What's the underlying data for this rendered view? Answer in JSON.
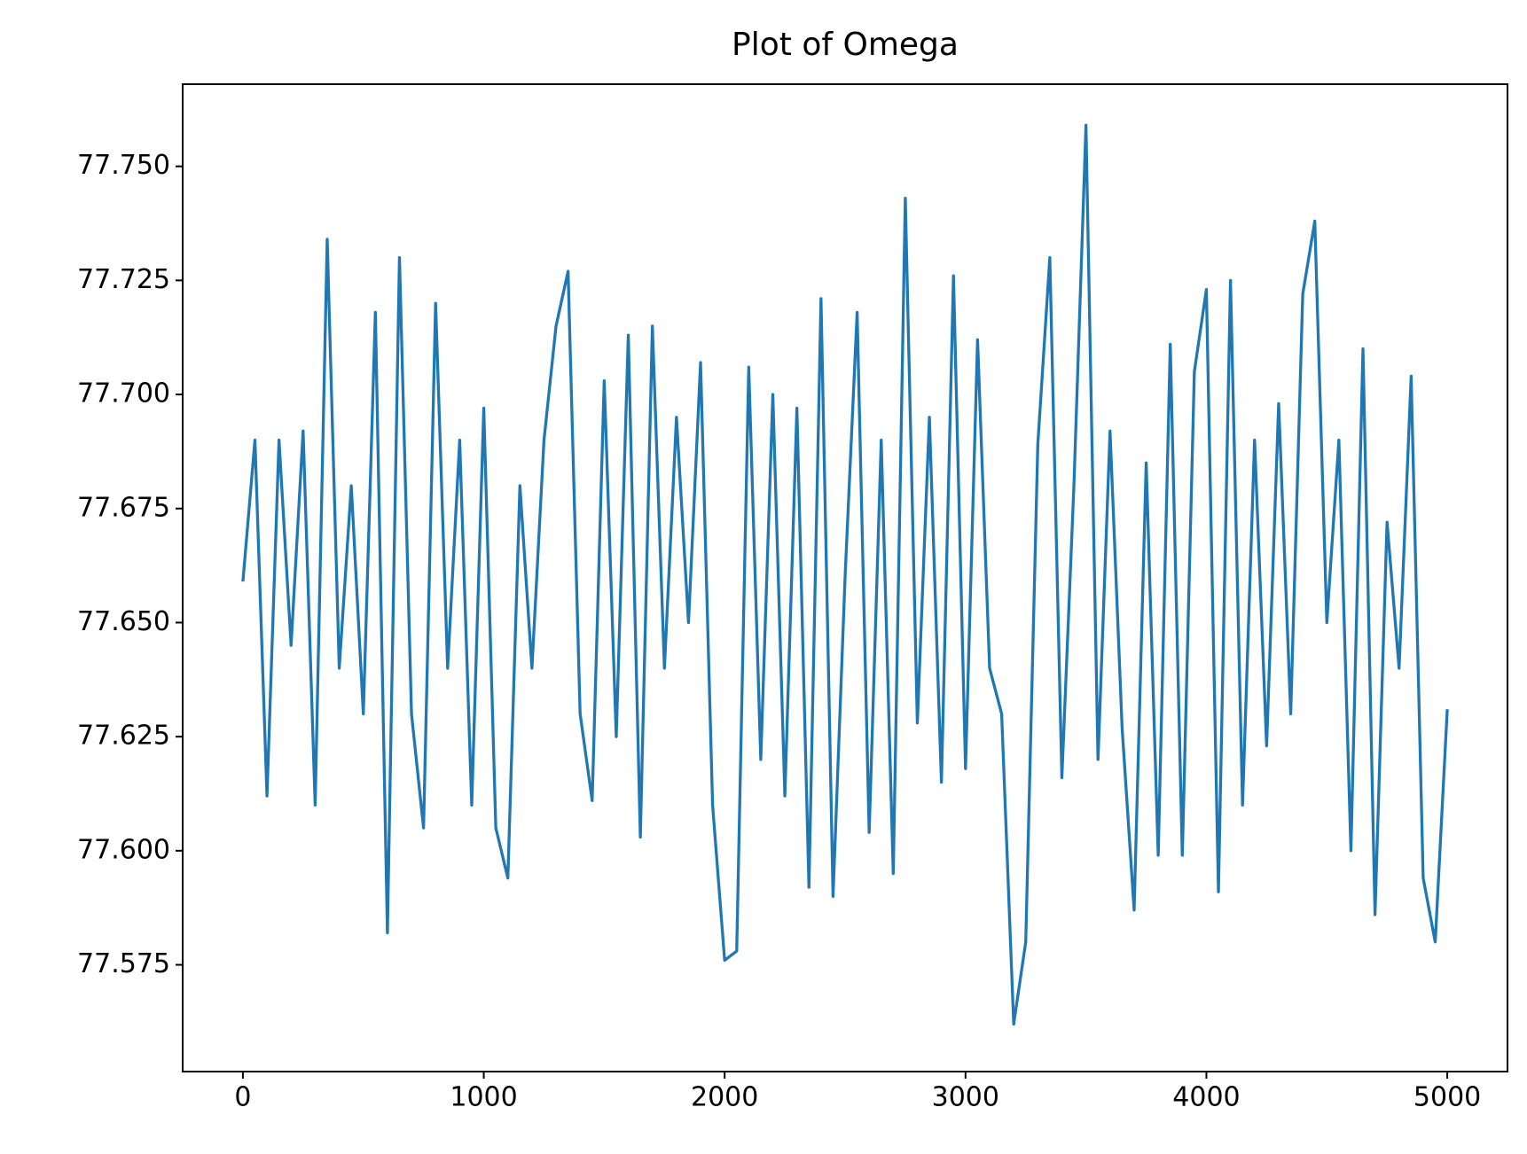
{
  "chart_data": {
    "type": "line",
    "title": "Plot of Omega",
    "x": [
      0,
      50,
      100,
      150,
      200,
      250,
      300,
      350,
      400,
      450,
      500,
      550,
      600,
      650,
      700,
      750,
      800,
      850,
      900,
      950,
      1000,
      1050,
      1100,
      1150,
      1200,
      1250,
      1300,
      1350,
      1400,
      1450,
      1500,
      1550,
      1600,
      1650,
      1700,
      1750,
      1800,
      1850,
      1900,
      1950,
      2000,
      2050,
      2100,
      2150,
      2200,
      2250,
      2300,
      2350,
      2400,
      2450,
      2500,
      2550,
      2600,
      2650,
      2700,
      2750,
      2800,
      2850,
      2900,
      2950,
      3000,
      3050,
      3100,
      3150,
      3200,
      3250,
      3300,
      3350,
      3400,
      3450,
      3500,
      3550,
      3600,
      3650,
      3700,
      3750,
      3800,
      3850,
      3900,
      3950,
      4000,
      4050,
      4100,
      4150,
      4200,
      4250,
      4300,
      4350,
      4400,
      4450,
      4500,
      4550,
      4600,
      4650,
      4700,
      4750,
      4800,
      4850,
      4900,
      4950,
      5000
    ],
    "series": [
      {
        "color": "#1f77b4",
        "values": [
          77.659,
          77.69,
          77.612,
          77.69,
          77.645,
          77.692,
          77.61,
          77.734,
          77.64,
          77.68,
          77.63,
          77.718,
          77.582,
          77.73,
          77.63,
          77.605,
          77.72,
          77.64,
          77.69,
          77.61,
          77.697,
          77.605,
          77.594,
          77.68,
          77.64,
          77.69,
          77.715,
          77.727,
          77.63,
          77.611,
          77.703,
          77.625,
          77.713,
          77.603,
          77.715,
          77.64,
          77.695,
          77.65,
          77.707,
          77.61,
          77.576,
          77.578,
          77.706,
          77.62,
          77.7,
          77.612,
          77.697,
          77.592,
          77.721,
          77.59,
          77.66,
          77.718,
          77.604,
          77.69,
          77.595,
          77.743,
          77.628,
          77.695,
          77.615,
          77.726,
          77.618,
          77.712,
          77.64,
          77.63,
          77.562,
          77.58,
          77.689,
          77.73,
          77.616,
          77.68,
          77.759,
          77.62,
          77.692,
          77.627,
          77.587,
          77.685,
          77.599,
          77.711,
          77.599,
          77.705,
          77.723,
          77.591,
          77.725,
          77.61,
          77.69,
          77.623,
          77.698,
          77.63,
          77.722,
          77.738,
          77.65,
          77.69,
          77.6,
          77.71,
          77.586,
          77.672,
          77.64,
          77.704,
          77.594,
          77.58,
          77.631
        ]
      }
    ],
    "xlim": [
      -250,
      5250
    ],
    "xticks": [
      0,
      1000,
      2000,
      3000,
      4000,
      5000
    ],
    "ylim": [
      77.5516,
      77.768
    ],
    "yticks": [
      {
        "value": 77.575,
        "label": "77.575"
      },
      {
        "value": 77.6,
        "label": "77.600"
      },
      {
        "value": 77.625,
        "label": "77.625"
      },
      {
        "value": 77.65,
        "label": "77.650"
      },
      {
        "value": 77.675,
        "label": "77.675"
      },
      {
        "value": 77.7,
        "label": "77.700"
      },
      {
        "value": 77.725,
        "label": "77.725"
      },
      {
        "value": 77.75,
        "label": "77.750"
      }
    ],
    "grid": false
  }
}
